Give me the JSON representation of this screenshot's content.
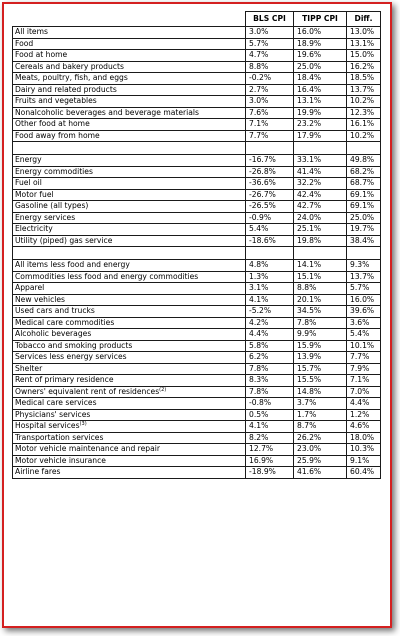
{
  "columns": [
    "",
    "BLS CPI",
    "TIPP CPI",
    "Diff."
  ],
  "rows": [
    {
      "label": "All items",
      "bls": "3.0%",
      "tipp": "16.0%",
      "diff": "13.0%"
    },
    {
      "label": "Food",
      "bls": "5.7%",
      "tipp": "18.9%",
      "diff": "13.1%"
    },
    {
      "label": "Food at home",
      "bls": "4.7%",
      "tipp": "19.6%",
      "diff": "15.0%"
    },
    {
      "label": "Cereals and bakery products",
      "bls": "8.8%",
      "tipp": "25.0%",
      "diff": "16.2%"
    },
    {
      "label": "Meats, poultry, fish, and eggs",
      "bls": "-0.2%",
      "tipp": "18.4%",
      "diff": "18.5%"
    },
    {
      "label": "Dairy and related products",
      "bls": "2.7%",
      "tipp": "16.4%",
      "diff": "13.7%"
    },
    {
      "label": "Fruits and vegetables",
      "bls": "3.0%",
      "tipp": "13.1%",
      "diff": "10.2%"
    },
    {
      "label": "Nonalcoholic beverages and beverage materials",
      "bls": "7.6%",
      "tipp": "19.9%",
      "diff": "12.3%"
    },
    {
      "label": "Other food at home",
      "bls": "7.1%",
      "tipp": "23.2%",
      "diff": "16.1%"
    },
    {
      "label": "Food away from home",
      "bls": "7.7%",
      "tipp": "17.9%",
      "diff": "10.2%"
    },
    {
      "label": "",
      "bls": "",
      "tipp": "",
      "diff": "",
      "gap": true
    },
    {
      "label": "Energy",
      "bls": "-16.7%",
      "tipp": "33.1%",
      "diff": "49.8%"
    },
    {
      "label": "Energy commodities",
      "bls": "-26.8%",
      "tipp": "41.4%",
      "diff": "68.2%"
    },
    {
      "label": "Fuel oil",
      "bls": "-36.6%",
      "tipp": "32.2%",
      "diff": "68.7%"
    },
    {
      "label": "Motor fuel",
      "bls": "-26.7%",
      "tipp": "42.4%",
      "diff": "69.1%"
    },
    {
      "label": "Gasoline (all types)",
      "bls": "-26.5%",
      "tipp": "42.7%",
      "diff": "69.1%"
    },
    {
      "label": "Energy services",
      "bls": "-0.9%",
      "tipp": "24.0%",
      "diff": "25.0%"
    },
    {
      "label": "Electricity",
      "bls": "5.4%",
      "tipp": "25.1%",
      "diff": "19.7%"
    },
    {
      "label": "Utility (piped) gas service",
      "bls": "-18.6%",
      "tipp": "19.8%",
      "diff": "38.4%"
    },
    {
      "label": "",
      "bls": "",
      "tipp": "",
      "diff": "",
      "gap": true
    },
    {
      "label": "All items less food and energy",
      "bls": "4.8%",
      "tipp": "14.1%",
      "diff": "9.3%"
    },
    {
      "label": "Commodities less food and energy commodities",
      "bls": "1.3%",
      "tipp": "15.1%",
      "diff": "13.7%"
    },
    {
      "label": "Apparel",
      "bls": "3.1%",
      "tipp": "8.8%",
      "diff": "5.7%"
    },
    {
      "label": "New vehicles",
      "bls": "4.1%",
      "tipp": "20.1%",
      "diff": "16.0%"
    },
    {
      "label": "Used cars and trucks",
      "bls": "-5.2%",
      "tipp": "34.5%",
      "diff": "39.6%"
    },
    {
      "label": "Medical care commodities",
      "bls": "4.2%",
      "tipp": "7.8%",
      "diff": "3.6%"
    },
    {
      "label": "Alcoholic beverages",
      "bls": "4.4%",
      "tipp": "9.9%",
      "diff": "5.4%"
    },
    {
      "label": "Tobacco and smoking products",
      "bls": "5.8%",
      "tipp": "15.9%",
      "diff": "10.1%"
    },
    {
      "label": "Services less energy services",
      "bls": "6.2%",
      "tipp": "13.9%",
      "diff": "7.7%"
    },
    {
      "label": "Shelter",
      "bls": "7.8%",
      "tipp": "15.7%",
      "diff": "7.9%"
    },
    {
      "label": "Rent of primary residence",
      "bls": "8.3%",
      "tipp": "15.5%",
      "diff": "7.1%"
    },
    {
      "label": "Owners' equivalent rent of residences",
      "sup": "(2)",
      "bls": "7.8%",
      "tipp": "14.8%",
      "diff": "7.0%"
    },
    {
      "label": "Medical care services",
      "bls": "-0.8%",
      "tipp": "3.7%",
      "diff": "4.4%"
    },
    {
      "label": "Physicians' services",
      "bls": "0.5%",
      "tipp": "1.7%",
      "diff": "1.2%"
    },
    {
      "label": "Hospital services",
      "sup": "(3)",
      "bls": "4.1%",
      "tipp": "8.7%",
      "diff": "4.6%"
    },
    {
      "label": "Transportation services",
      "bls": "8.2%",
      "tipp": "26.2%",
      "diff": "18.0%"
    },
    {
      "label": "Motor vehicle maintenance and repair",
      "bls": "12.7%",
      "tipp": "23.0%",
      "diff": "10.3%"
    },
    {
      "label": "Motor vehicle insurance",
      "bls": "16.9%",
      "tipp": "25.9%",
      "diff": "9.1%"
    },
    {
      "label": "Airline fares",
      "bls": "-18.9%",
      "tipp": "41.6%",
      "diff": "60.4%"
    }
  ],
  "colors": {
    "frame_border": "#d42020",
    "grid": "#1a1a1a"
  }
}
